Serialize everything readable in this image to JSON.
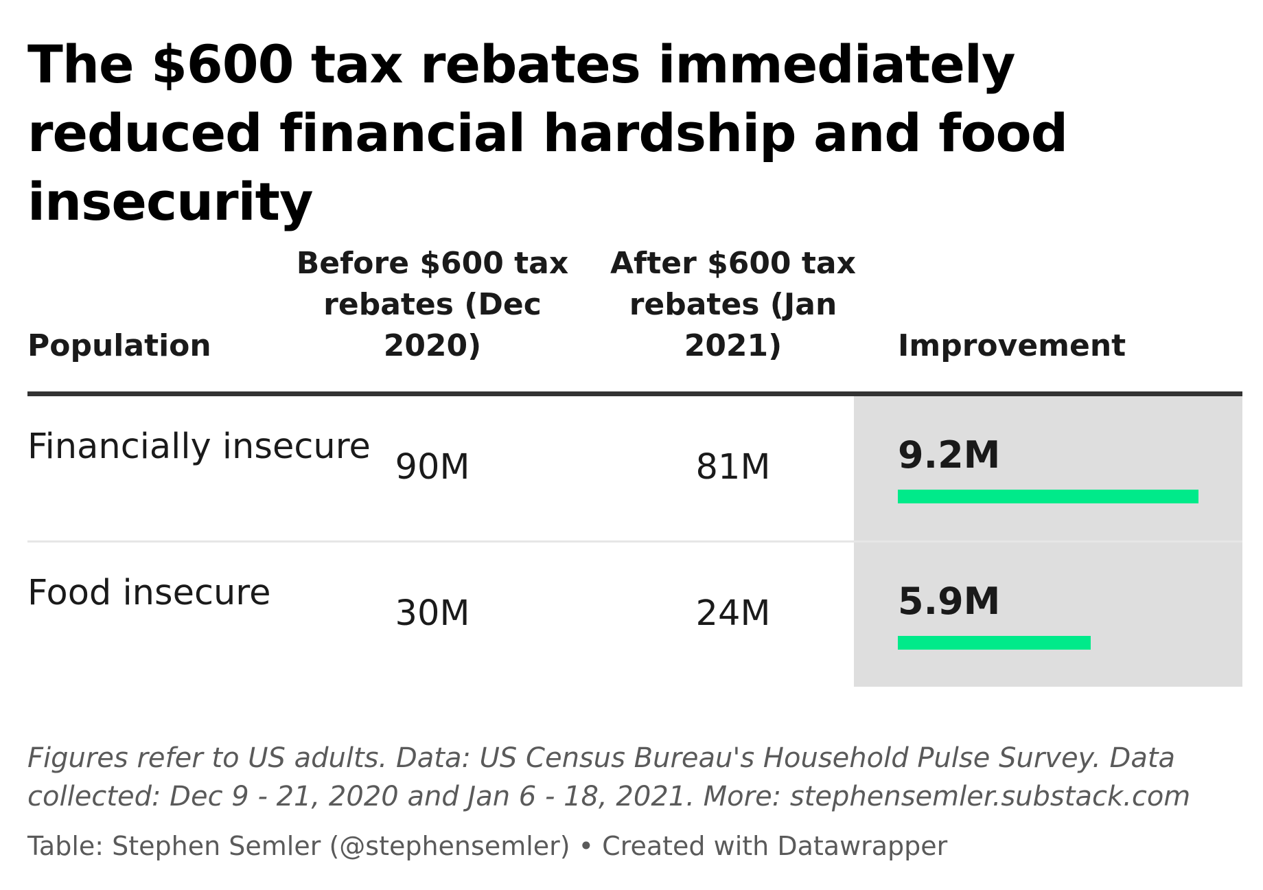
{
  "title": "The $600 tax rebates immediately reduced financial hardship and food insecurity",
  "colors": {
    "bar": "#00ea8a",
    "highlight_column": "#dedede",
    "header_rule": "#333333"
  },
  "chart_data": {
    "type": "table",
    "columns": [
      "Population",
      "Before $600 tax rebates (Dec 2020)",
      "After $600 tax rebates (Jan 2021)",
      "Improvement"
    ],
    "rows": [
      {
        "population": "Financially insecure",
        "before": "90M",
        "after": "81M",
        "improvement": "9.2M",
        "improvement_value": 9.2
      },
      {
        "population": "Food insecure",
        "before": "30M",
        "after": "24M",
        "improvement": "5.9M",
        "improvement_value": 5.9
      }
    ],
    "bar_max": 9.2
  },
  "notes": "Figures refer to US adults. Data: US Census Bureau's Household Pulse Survey. Data collected: Dec 9 - 21, 2020 and Jan 6 - 18, 2021. More: stephensemler.substack.com",
  "credit": "Table: Stephen Semler (@stephensemler) • Created with Datawrapper"
}
